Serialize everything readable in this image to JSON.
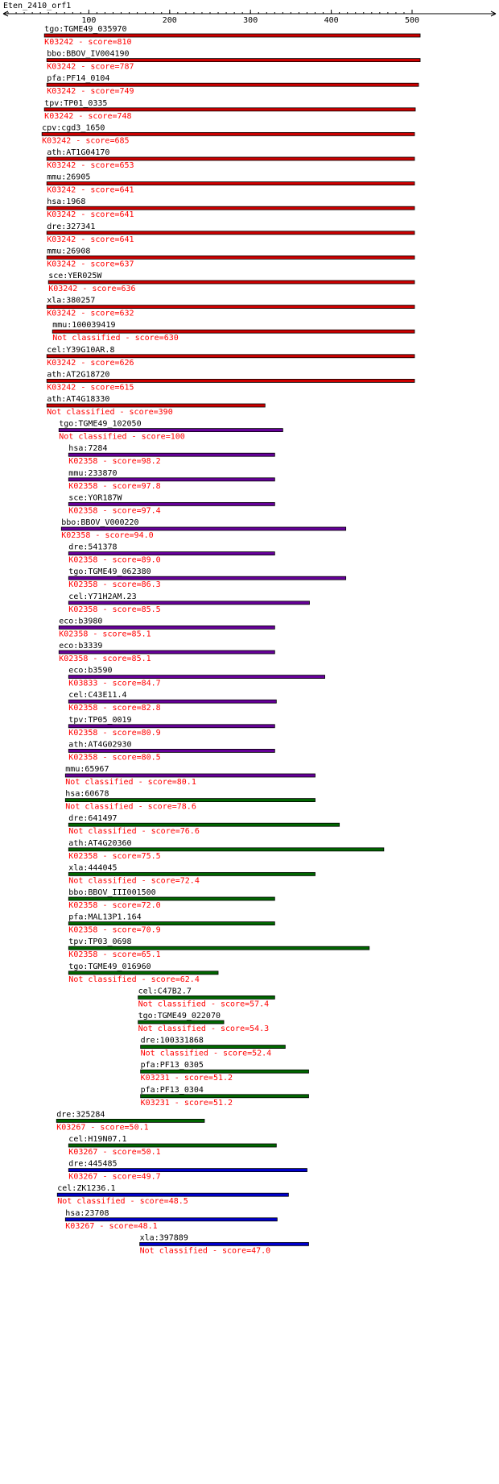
{
  "title": "Eten_2410_orf1",
  "axis": {
    "min": 0,
    "max": 500,
    "major_ticks": [
      100,
      200,
      300,
      400,
      500
    ],
    "minor_step": 10
  },
  "colors": {
    "red": "#cc0000",
    "purple": "#660099",
    "green": "#006600",
    "blue": "#0000cc",
    "bar_outline": "#000000",
    "label": "#000000",
    "class_text": "#ff0000"
  },
  "hits": [
    {
      "name": "tgo:TGME49_035970",
      "classification": "K03242 - score=810",
      "start": 45,
      "end": 510,
      "color": "red"
    },
    {
      "name": "bbo:BBOV_IV004190",
      "classification": "K03242 - score=787",
      "start": 48,
      "end": 510,
      "color": "red"
    },
    {
      "name": "pfa:PF14_0104",
      "classification": "K03242 - score=749",
      "start": 48,
      "end": 508,
      "color": "red"
    },
    {
      "name": "tpv:TP01_0335",
      "classification": "K03242 - score=748",
      "start": 45,
      "end": 504,
      "color": "red"
    },
    {
      "name": "cpv:cgd3_1650",
      "classification": "K03242 - score=685",
      "start": 42,
      "end": 503,
      "color": "red"
    },
    {
      "name": "ath:AT1G04170",
      "classification": "K03242 - score=653",
      "start": 48,
      "end": 503,
      "color": "red"
    },
    {
      "name": "mmu:26905",
      "classification": "K03242 - score=641",
      "start": 48,
      "end": 503,
      "color": "red"
    },
    {
      "name": "hsa:1968",
      "classification": "K03242 - score=641",
      "start": 48,
      "end": 503,
      "color": "red"
    },
    {
      "name": "dre:327341",
      "classification": "K03242 - score=641",
      "start": 48,
      "end": 503,
      "color": "red"
    },
    {
      "name": "mmu:26908",
      "classification": "K03242 - score=637",
      "start": 48,
      "end": 503,
      "color": "red"
    },
    {
      "name": "sce:YER025W",
      "classification": "K03242 - score=636",
      "start": 50,
      "end": 503,
      "color": "red"
    },
    {
      "name": "xla:380257",
      "classification": "K03242 - score=632",
      "start": 48,
      "end": 503,
      "color": "red"
    },
    {
      "name": "mmu:100039419",
      "classification": "Not classified - score=630",
      "start": 55,
      "end": 503,
      "color": "red"
    },
    {
      "name": "cel:Y39G10AR.8",
      "classification": "K03242 - score=626",
      "start": 48,
      "end": 503,
      "color": "red"
    },
    {
      "name": "ath:AT2G18720",
      "classification": "K03242 - score=615",
      "start": 48,
      "end": 503,
      "color": "red"
    },
    {
      "name": "ath:AT4G18330",
      "classification": "Not classified - score=390",
      "start": 48,
      "end": 318,
      "color": "red"
    },
    {
      "name": "tgo:TGME49_102050",
      "classification": "Not classified - score=100",
      "start": 63,
      "end": 340,
      "color": "purple"
    },
    {
      "name": "hsa:7284",
      "classification": "K02358 - score=98.2",
      "start": 75,
      "end": 330,
      "color": "purple"
    },
    {
      "name": "mmu:233870",
      "classification": "K02358 - score=97.8",
      "start": 75,
      "end": 330,
      "color": "purple"
    },
    {
      "name": "sce:YOR187W",
      "classification": "K02358 - score=97.4",
      "start": 75,
      "end": 330,
      "color": "purple"
    },
    {
      "name": "bbo:BBOV_V000220",
      "classification": "K02358 - score=94.0",
      "start": 66,
      "end": 418,
      "color": "purple"
    },
    {
      "name": "dre:541378",
      "classification": "K02358 - score=89.0",
      "start": 75,
      "end": 330,
      "color": "purple"
    },
    {
      "name": "tgo:TGME49_062380",
      "classification": "K02358 - score=86.3",
      "start": 75,
      "end": 418,
      "color": "purple"
    },
    {
      "name": "cel:Y71H2AM.23",
      "classification": "K02358 - score=85.5",
      "start": 75,
      "end": 373,
      "color": "purple"
    },
    {
      "name": "eco:b3980",
      "classification": "K02358 - score=85.1",
      "start": 63,
      "end": 330,
      "color": "purple"
    },
    {
      "name": "eco:b3339",
      "classification": "K02358 - score=85.1",
      "start": 63,
      "end": 330,
      "color": "purple"
    },
    {
      "name": "eco:b3590",
      "classification": "K03833 - score=84.7",
      "start": 75,
      "end": 392,
      "color": "purple"
    },
    {
      "name": "cel:C43E11.4",
      "classification": "K02358 - score=82.8",
      "start": 75,
      "end": 332,
      "color": "purple"
    },
    {
      "name": "tpv:TP05_0019",
      "classification": "K02358 - score=80.9",
      "start": 75,
      "end": 330,
      "color": "purple"
    },
    {
      "name": "ath:AT4G02930",
      "classification": "K02358 - score=80.5",
      "start": 75,
      "end": 330,
      "color": "purple"
    },
    {
      "name": "mmu:65967",
      "classification": "Not classified - score=80.1",
      "start": 71,
      "end": 380,
      "color": "purple"
    },
    {
      "name": "hsa:60678",
      "classification": "Not classified - score=78.6",
      "start": 71,
      "end": 380,
      "color": "green"
    },
    {
      "name": "dre:641497",
      "classification": "Not classified - score=76.6",
      "start": 75,
      "end": 410,
      "color": "green"
    },
    {
      "name": "ath:AT4G20360",
      "classification": "K02358 - score=75.5",
      "start": 75,
      "end": 465,
      "color": "green"
    },
    {
      "name": "xla:444045",
      "classification": "Not classified - score=72.4",
      "start": 75,
      "end": 380,
      "color": "green"
    },
    {
      "name": "bbo:BBOV_III001500",
      "classification": "K02358 - score=72.0",
      "start": 75,
      "end": 330,
      "color": "green"
    },
    {
      "name": "pfa:MAL13P1.164",
      "classification": "K02358 - score=70.9",
      "start": 75,
      "end": 330,
      "color": "green"
    },
    {
      "name": "tpv:TP03_0698",
      "classification": "K02358 - score=65.1",
      "start": 75,
      "end": 447,
      "color": "green"
    },
    {
      "name": "tgo:TGME49_016960",
      "classification": "Not classified - score=62.4",
      "start": 75,
      "end": 260,
      "color": "green"
    },
    {
      "name": "cel:C47B2.7",
      "classification": "Not classified - score=57.4",
      "start": 161,
      "end": 330,
      "color": "green"
    },
    {
      "name": "tgo:TGME49_022070",
      "classification": "Not classified - score=54.3",
      "start": 161,
      "end": 267,
      "color": "green"
    },
    {
      "name": "dre:100331868",
      "classification": "Not classified - score=52.4",
      "start": 164,
      "end": 343,
      "color": "green"
    },
    {
      "name": "pfa:PF13_0305",
      "classification": "K03231 - score=51.2",
      "start": 164,
      "end": 372,
      "color": "green"
    },
    {
      "name": "pfa:PF13_0304",
      "classification": "K03231 - score=51.2",
      "start": 164,
      "end": 372,
      "color": "green"
    },
    {
      "name": "dre:325284",
      "classification": "K03267 - score=50.1",
      "start": 60,
      "end": 243,
      "color": "green"
    },
    {
      "name": "cel:H19N07.1",
      "classification": "K03267 - score=50.1",
      "start": 75,
      "end": 332,
      "color": "green"
    },
    {
      "name": "dre:445485",
      "classification": "K03267 - score=49.7",
      "start": 75,
      "end": 370,
      "color": "blue"
    },
    {
      "name": "cel:ZK1236.1",
      "classification": "Not classified - score=48.5",
      "start": 61,
      "end": 347,
      "color": "blue"
    },
    {
      "name": "hsa:23708",
      "classification": "K03267 - score=48.1",
      "start": 71,
      "end": 333,
      "color": "blue"
    },
    {
      "name": "xla:397889",
      "classification": "Not classified - score=47.0",
      "start": 163,
      "end": 372,
      "color": "blue"
    }
  ]
}
